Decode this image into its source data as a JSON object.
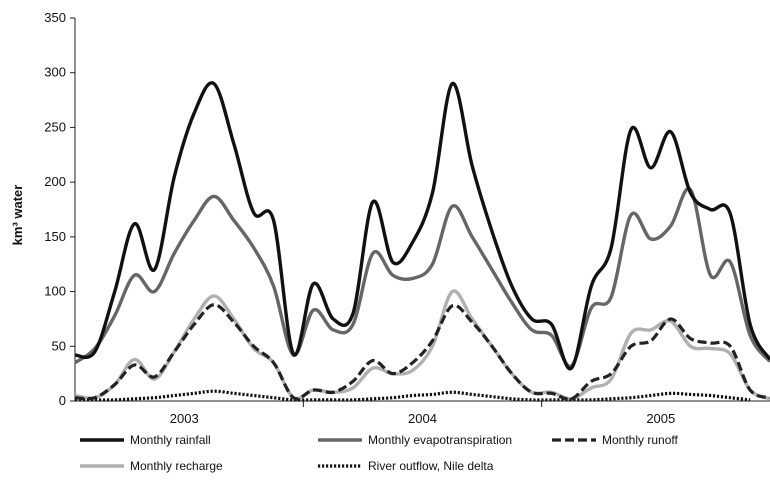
{
  "chart_data": {
    "type": "line",
    "title": "",
    "xlabel": "",
    "ylabel": "km³ water",
    "ylim": [
      0,
      350
    ],
    "yticks": [
      "0",
      "50",
      "100",
      "150",
      "200",
      "250",
      "300",
      "350"
    ],
    "xlim": [
      0,
      35
    ],
    "xticks": [
      {
        "label": "2003",
        "x": 5.5
      },
      {
        "label": "2004",
        "x": 17.5
      },
      {
        "label": "2005",
        "x": 29.5
      }
    ],
    "grid": false,
    "legend_position": "bottom",
    "series": [
      {
        "name": "Monthly rainfall",
        "color": "#111111",
        "dash": "solid",
        "x": [
          0,
          1,
          2,
          3,
          4,
          5,
          6,
          7,
          8,
          9,
          10,
          11,
          12,
          13,
          14,
          15,
          16,
          17,
          18,
          19,
          20,
          21,
          22,
          23,
          24,
          25,
          26,
          27,
          28,
          29,
          30,
          31,
          32,
          33,
          34,
          35
        ],
        "values": [
          42,
          45,
          100,
          162,
          120,
          205,
          263,
          290,
          235,
          172,
          165,
          43,
          107,
          75,
          80,
          182,
          127,
          145,
          190,
          290,
          215,
          155,
          105,
          75,
          70,
          30,
          105,
          140,
          248,
          213,
          246,
          190,
          175,
          171,
          70,
          38
        ]
      },
      {
        "name": "Monthly evapotranspiration",
        "color": "#666666",
        "dash": "solid",
        "x": [
          0,
          1,
          2,
          3,
          4,
          5,
          6,
          7,
          8,
          9,
          10,
          11,
          12,
          13,
          14,
          15,
          16,
          17,
          18,
          19,
          20,
          21,
          22,
          23,
          24,
          25,
          26,
          27,
          28,
          29,
          30,
          31,
          32,
          33,
          34,
          35
        ],
        "values": [
          35,
          48,
          78,
          115,
          100,
          135,
          165,
          187,
          165,
          140,
          105,
          42,
          83,
          65,
          70,
          135,
          115,
          112,
          125,
          178,
          150,
          120,
          90,
          65,
          60,
          32,
          85,
          95,
          170,
          148,
          160,
          193,
          115,
          127,
          60,
          36
        ]
      },
      {
        "name": "Monthly runoff",
        "color": "#222222",
        "dash": "dashed",
        "x": [
          0,
          1,
          2,
          3,
          4,
          5,
          6,
          7,
          8,
          9,
          10,
          11,
          12,
          13,
          14,
          15,
          16,
          17,
          18,
          19,
          20,
          21,
          22,
          23,
          24,
          25,
          26,
          27,
          28,
          29,
          30,
          31,
          32,
          33,
          34,
          35
        ],
        "values": [
          3,
          3,
          15,
          33,
          22,
          45,
          70,
          88,
          72,
          50,
          35,
          3,
          10,
          8,
          18,
          37,
          25,
          35,
          55,
          87,
          72,
          50,
          25,
          8,
          7,
          2,
          18,
          25,
          50,
          55,
          75,
          57,
          53,
          50,
          10,
          3
        ]
      },
      {
        "name": "Monthly recharge",
        "color": "#b0b0b0",
        "dash": "solid",
        "x": [
          0,
          1,
          2,
          3,
          4,
          5,
          6,
          7,
          8,
          9,
          10,
          11,
          12,
          13,
          14,
          15,
          16,
          17,
          18,
          19,
          20,
          21,
          22,
          23,
          24,
          25,
          26,
          27,
          28,
          29,
          30,
          31,
          32,
          33,
          34,
          35
        ],
        "values": [
          5,
          3,
          15,
          38,
          20,
          45,
          75,
          96,
          75,
          48,
          35,
          3,
          10,
          8,
          12,
          30,
          25,
          28,
          50,
          100,
          75,
          50,
          25,
          8,
          8,
          2,
          12,
          20,
          62,
          65,
          73,
          50,
          48,
          43,
          10,
          2
        ]
      },
      {
        "name": "River outflow, Nile delta",
        "color": "#111111",
        "dash": "dotted",
        "x": [
          0,
          1,
          2,
          3,
          4,
          5,
          6,
          7,
          8,
          9,
          10,
          11,
          12,
          13,
          14,
          15,
          16,
          17,
          18,
          19,
          20,
          21,
          22,
          23,
          24,
          25,
          26,
          27,
          28,
          29,
          30,
          31,
          32,
          33,
          34
        ],
        "values": [
          1,
          1,
          1,
          2,
          3,
          5,
          7,
          9,
          7,
          5,
          3,
          1,
          1,
          1,
          1,
          2,
          3,
          5,
          6,
          8,
          6,
          4,
          2,
          1,
          1,
          1,
          1,
          2,
          3,
          5,
          7,
          6,
          5,
          3,
          1
        ]
      }
    ]
  }
}
